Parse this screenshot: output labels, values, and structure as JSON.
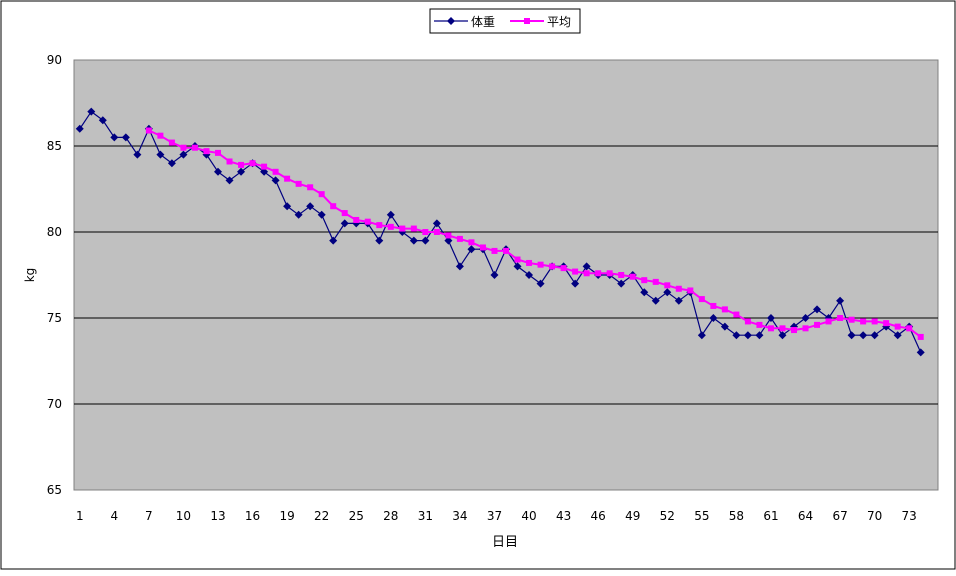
{
  "chart_data": {
    "type": "line",
    "title": "",
    "xlabel": "日目",
    "ylabel": "kg",
    "ylim": [
      65,
      90
    ],
    "yticks": [
      65,
      70,
      75,
      80,
      85,
      90
    ],
    "xticks": [
      1,
      4,
      7,
      10,
      13,
      16,
      19,
      22,
      25,
      28,
      31,
      34,
      37,
      40,
      43,
      46,
      49,
      52,
      55,
      58,
      61,
      64,
      67,
      70,
      73
    ],
    "x_count": 75,
    "grid": true,
    "legend": "top-center",
    "series": [
      {
        "name": "体重",
        "color": "#000080",
        "marker": "diamond",
        "x_start": 1,
        "values": [
          86,
          87,
          86.5,
          85.5,
          85.5,
          84.5,
          86,
          84.5,
          84,
          84.5,
          85,
          84.5,
          83.5,
          83,
          83.5,
          84,
          83.5,
          83,
          81.5,
          81,
          81.5,
          81,
          79.5,
          80.5,
          80.5,
          80.5,
          79.5,
          81,
          80,
          79.5,
          79.5,
          80.5,
          79.5,
          78,
          79,
          79,
          77.5,
          79,
          78,
          77.5,
          77,
          78,
          78,
          77,
          78,
          77.5,
          77.5,
          77,
          77.5,
          76.5,
          76,
          76.5,
          76,
          76.5,
          74,
          75,
          74.5,
          74,
          74,
          74,
          75,
          74,
          74.5,
          75,
          75.5,
          75,
          76,
          74,
          74,
          74,
          74.5,
          74,
          74.5,
          73
        ]
      },
      {
        "name": "平均",
        "color": "#ff00ff",
        "marker": "square",
        "x_start": 7,
        "values": [
          85.9,
          85.6,
          85.2,
          84.9,
          84.9,
          84.7,
          84.6,
          84.1,
          83.9,
          84.0,
          83.8,
          83.5,
          83.1,
          82.8,
          82.6,
          82.2,
          81.5,
          81.1,
          80.7,
          80.6,
          80.4,
          80.3,
          80.2,
          80.2,
          80.0,
          80.0,
          79.8,
          79.6,
          79.4,
          79.1,
          78.9,
          78.9,
          78.4,
          78.2,
          78.1,
          78.0,
          77.9,
          77.7,
          77.6,
          77.6,
          77.6,
          77.5,
          77.4,
          77.2,
          77.1,
          76.9,
          76.7,
          76.6,
          76.1,
          75.7,
          75.5,
          75.2,
          74.8,
          74.6,
          74.4,
          74.4,
          74.3,
          74.4,
          74.6,
          74.8,
          75.0,
          74.9,
          74.8,
          74.8,
          74.7,
          74.5,
          74.4,
          73.9
        ]
      }
    ]
  }
}
